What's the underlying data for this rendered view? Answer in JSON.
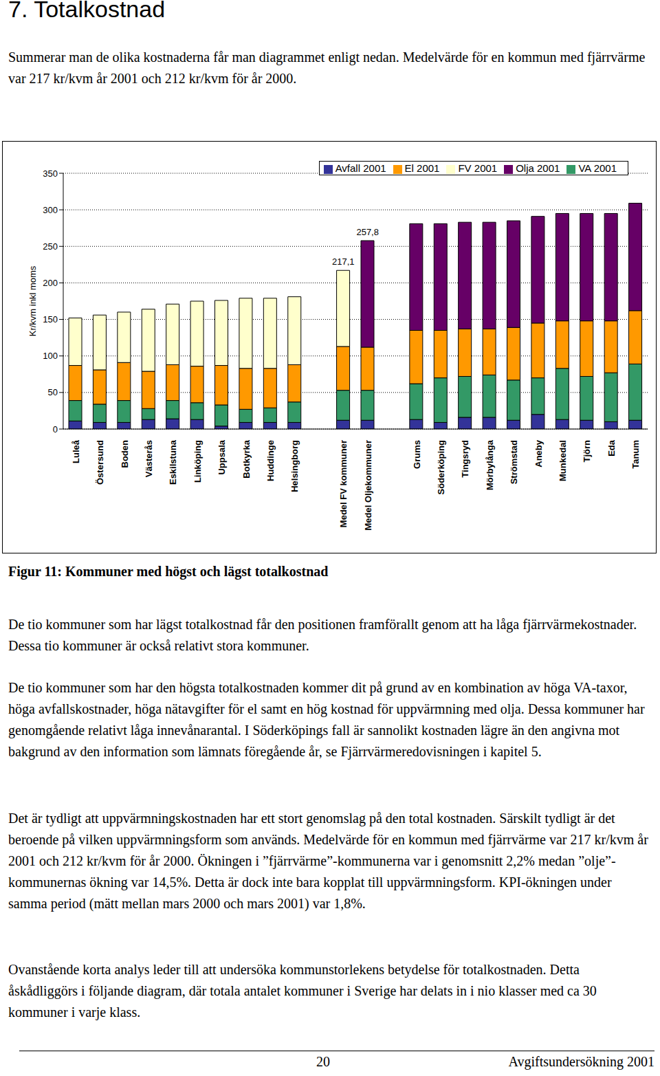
{
  "heading": "7. Totalkostnad",
  "intro": "Summerar man de olika kostnaderna får man diagrammet enligt nedan. Medelvärde för en kommun med fjärrvärme var 217 kr/kvm år 2001 och 212 kr/kvm för år 2000.",
  "chart_data": {
    "type": "bar",
    "stacked": true,
    "y_label": "Kr/kvm inkl moms",
    "categories": [
      "Luleå",
      "Östersund",
      "Boden",
      "Västerås",
      "Eskilstuna",
      "Linköping",
      "Uppsala",
      "Botkyrka",
      "Huddinge",
      "Helsingborg",
      null,
      "Medel FV kommuner",
      "Medel Oljekommuner",
      null,
      "Grums",
      "Söderköping",
      "Tingsryd",
      "Mörbylånga",
      "Strömstad",
      "Aneby",
      "Munkedal",
      "Tjörn",
      "Eda",
      "Tanum"
    ],
    "series": [
      {
        "name": "Avfall 2001",
        "color": "#333399",
        "values": [
          11,
          9,
          9,
          13,
          14,
          13,
          4,
          9,
          9,
          9,
          null,
          12,
          12,
          null,
          13,
          9,
          16,
          16,
          12,
          20,
          13,
          12,
          10,
          12
        ]
      },
      {
        "name": "VA 2001",
        "color": "#339966",
        "values": [
          28,
          25,
          30,
          15,
          25,
          23,
          29,
          18,
          20,
          28,
          null,
          41,
          41,
          null,
          49,
          61,
          56,
          58,
          55,
          50,
          70,
          60,
          67,
          77
        ]
      },
      {
        "name": "El 2001",
        "color": "#FF9900",
        "values": [
          48,
          47,
          52,
          51,
          49,
          50,
          54,
          56,
          54,
          51,
          null,
          60,
          59,
          null,
          73,
          65,
          65,
          63,
          72,
          75,
          65,
          76,
          71,
          73
        ]
      },
      {
        "name": "FV 2001",
        "color": "#FFFFCC",
        "values": [
          65,
          75,
          69,
          85,
          83,
          89,
          89,
          96,
          96,
          93,
          null,
          104.1,
          0,
          null,
          0,
          0,
          0,
          0,
          0,
          0,
          0,
          0,
          0,
          0
        ]
      },
      {
        "name": "Olja 2001",
        "color": "#660066",
        "values": [
          0,
          0,
          0,
          0,
          0,
          0,
          0,
          0,
          0,
          0,
          null,
          0,
          145.8,
          null,
          146,
          146,
          146,
          146,
          146,
          146,
          147,
          147,
          147,
          147
        ]
      }
    ],
    "annotations": [
      {
        "category": "Medel FV kommuner",
        "value": 217.1,
        "label": "217,1"
      },
      {
        "category": "Medel Oljekommuner",
        "value": 257.8,
        "label": "257,8"
      }
    ],
    "ylim": [
      0,
      350
    ],
    "yticks": [
      0,
      50,
      100,
      150,
      200,
      250,
      300,
      350
    ],
    "grid": true,
    "legend": "upper right"
  },
  "caption": "Figur 11: Kommuner med högst och lägst totalkostnad",
  "paragraphs": [
    "De tio kommuner som har lägst totalkostnad får den positionen framförallt genom att ha låga fjärrvärmekostnader. Dessa tio kommuner är också relativt stora kommuner.",
    "De tio kommuner som har den högsta totalkostnaden kommer dit på grund av en kombination av höga VA-taxor, höga avfallskostnader, höga nätavgifter för el samt en hög kostnad för uppvärmning med olja. Dessa kommuner har genomgående relativt låga innevånarantal. I Söderköpings fall är sannolikt kostnaden lägre än den angivna mot bakgrund av den information som lämnats föregående år, se Fjärrvärmeredovisningen i kapitel 5.",
    "Det är tydligt att uppvärmningskostnaden har ett stort genomslag på den total kostnaden. Särskilt tydligt är det beroende på vilken uppvärmningsform som används. Medelvärde för en kommun med fjärrvärme var 217 kr/kvm år 2001 och 212 kr/kvm för år 2000. Ökningen i ”fjärrvärme”-kommunerna var i genomsnitt 2,2% medan ”olje”-kommunernas ökning var 14,5%. Detta är dock inte bara kopplat till uppvärmningsform. KPI-ökningen under samma period (mätt mellan mars 2000 och mars 2001) var 1,8%.",
    "Ovanstående korta analys leder till att undersöka kommunstorlekens betydelse för totalkostnaden. Detta åskådliggörs i följande diagram, där totala antalet kommuner i Sverige har delats in i nio klasser med ca 30 kommuner i varje klass."
  ],
  "footer": {
    "page": "20",
    "publication": "Avgiftsundersökning 2001"
  }
}
